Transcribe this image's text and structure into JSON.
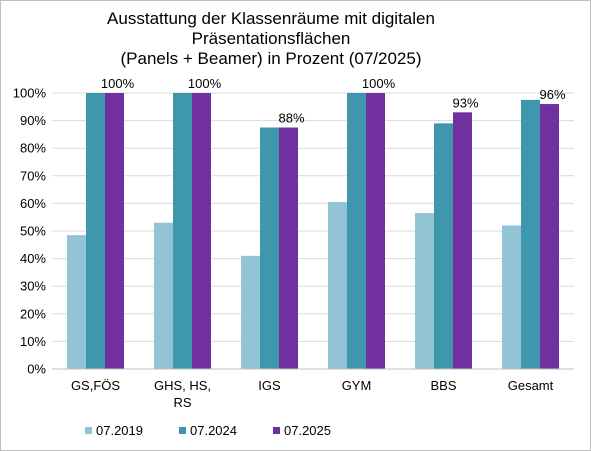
{
  "chart_data": {
    "type": "bar",
    "title_lines": [
      "Ausstattung der Klassenräume mit digitalen",
      "Präsentationsflächen",
      "(Panels + Beamer) in Prozent (07/2025)"
    ],
    "categories": [
      [
        "GS,FÖS"
      ],
      [
        "GHS, HS,",
        "RS"
      ],
      [
        "IGS"
      ],
      [
        "GYM"
      ],
      [
        "BBS"
      ],
      [
        "Gesamt"
      ]
    ],
    "series": [
      {
        "name": "07.2019",
        "color": "#92c4d6",
        "values": [
          48.5,
          53,
          41,
          60.5,
          56.5,
          52
        ]
      },
      {
        "name": "07.2024",
        "color": "#3f97ad",
        "values": [
          100,
          100,
          87.5,
          100,
          89,
          97.5
        ]
      },
      {
        "name": "07.2025",
        "color": "#7030a0",
        "values": [
          100,
          100,
          87.5,
          100,
          93,
          96
        ]
      }
    ],
    "data_labels": [
      "100%",
      "100%",
      "88%",
      "100%",
      "93%",
      "96%"
    ],
    "ylim": [
      0,
      100
    ],
    "y_ticks": [
      {
        "value": 0,
        "label": "0%"
      },
      {
        "value": 10,
        "label": "10%"
      },
      {
        "value": 20,
        "label": "20%"
      },
      {
        "value": 30,
        "label": "30%"
      },
      {
        "value": 40,
        "label": "40%"
      },
      {
        "value": 50,
        "label": "50%"
      },
      {
        "value": 60,
        "label": "60%"
      },
      {
        "value": 70,
        "label": "70%"
      },
      {
        "value": 80,
        "label": "80%"
      },
      {
        "value": 90,
        "label": "90%"
      },
      {
        "value": 100,
        "label": "100%"
      }
    ],
    "grid": true,
    "legend_position": "bottom"
  }
}
